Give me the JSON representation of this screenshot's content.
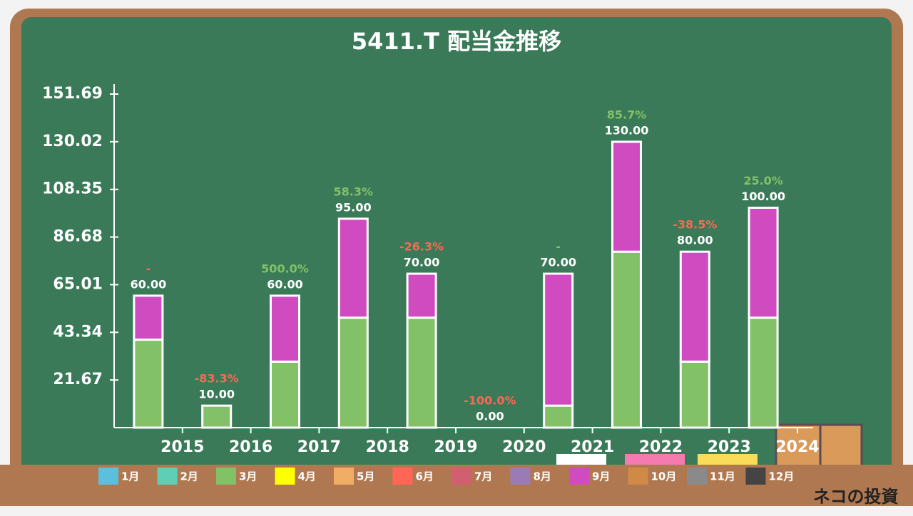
{
  "chart_data": {
    "type": "bar",
    "stacked": true,
    "title": "5411.T 配当金推移",
    "categories": [
      "2015",
      "2016",
      "2017",
      "2018",
      "2019",
      "2020",
      "2021",
      "2022",
      "2023",
      "2024"
    ],
    "series": [
      {
        "name": "1月",
        "color": "#5bc0de",
        "values": [
          0,
          0,
          0,
          0,
          0,
          0,
          0,
          0,
          0,
          0
        ]
      },
      {
        "name": "2月",
        "color": "#5ecfb5",
        "values": [
          0,
          0,
          0,
          0,
          0,
          0,
          0,
          0,
          0,
          0
        ]
      },
      {
        "name": "3月",
        "color": "#82c168",
        "values": [
          40,
          10,
          30,
          50,
          50,
          0,
          10,
          80,
          30,
          50
        ]
      },
      {
        "name": "4月",
        "color": "#ffff00",
        "values": [
          0,
          0,
          0,
          0,
          0,
          0,
          0,
          0,
          0,
          0
        ]
      },
      {
        "name": "5月",
        "color": "#f0ad66",
        "values": [
          0,
          0,
          0,
          0,
          0,
          0,
          0,
          0,
          0,
          0
        ]
      },
      {
        "name": "6月",
        "color": "#ff6655",
        "values": [
          0,
          0,
          0,
          0,
          0,
          0,
          0,
          0,
          0,
          0
        ]
      },
      {
        "name": "7月",
        "color": "#d06070",
        "values": [
          0,
          0,
          0,
          0,
          0,
          0,
          0,
          0,
          0,
          0
        ]
      },
      {
        "name": "8月",
        "color": "#9b7bb5",
        "values": [
          0,
          0,
          0,
          0,
          0,
          0,
          0,
          0,
          0,
          0
        ]
      },
      {
        "name": "9月",
        "color": "#d14bc0",
        "values": [
          20,
          0,
          30,
          45,
          20,
          0,
          60,
          50,
          50,
          50
        ]
      },
      {
        "name": "10月",
        "color": "#d08a45",
        "values": [
          0,
          0,
          0,
          0,
          0,
          0,
          0,
          0,
          0,
          0
        ]
      },
      {
        "name": "11月",
        "color": "#8a8a8a",
        "values": [
          0,
          0,
          0,
          0,
          0,
          0,
          0,
          0,
          0,
          0
        ]
      },
      {
        "name": "12月",
        "color": "#444444",
        "values": [
          0,
          0,
          0,
          0,
          0,
          0,
          0,
          0,
          0,
          0
        ]
      }
    ],
    "total_labels": [
      "60.00",
      "10.00",
      "60.00",
      "95.00",
      "70.00",
      "0.00",
      "70.00",
      "130.00",
      "80.00",
      "100.00"
    ],
    "growth_labels": [
      "-",
      "-83.3%",
      "500.0%",
      "58.3%",
      "-26.3%",
      "-100.0%",
      "-",
      "85.7%",
      "-38.5%",
      "25.0%"
    ],
    "growth_colors": [
      "#ff6655",
      "#ff6655",
      "#82c168",
      "#82c168",
      "#ff6655",
      "#ff6655",
      "#82c168",
      "#82c168",
      "#ff6655",
      "#82c168"
    ],
    "ylim": [
      0,
      151.69
    ],
    "yticks": [
      21.67,
      43.34,
      65.01,
      86.68,
      108.35,
      130.02,
      151.69
    ]
  },
  "watermark": "ネコの投資"
}
